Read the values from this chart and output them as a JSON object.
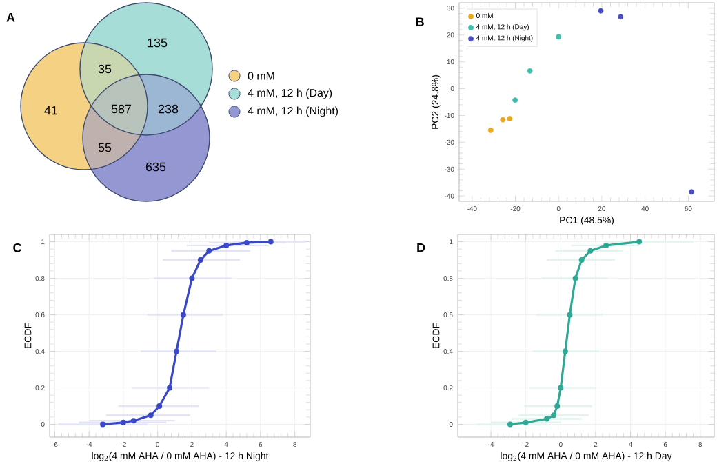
{
  "chart_data": [
    {
      "type": "other",
      "title": "A",
      "legend": "right",
      "annotations": [
        "41",
        "35",
        "135",
        "587",
        "238",
        "55",
        "635"
      ],
      "series": [
        {
          "name": "0 mM",
          "color": "#f4d183"
        },
        {
          "name": "4 mM, 12 h (Day)",
          "color": "#a6ddd6"
        },
        {
          "name": "4 mM, 12 h (Night)",
          "color": "#9497d2"
        }
      ]
    },
    {
      "type": "scatter",
      "title": "B",
      "xlabel": "PC1 (48.5%)",
      "ylabel": "PC2 (24.8%)",
      "xlim": [
        -46,
        72
      ],
      "ylim": [
        -42,
        32
      ],
      "xticks": [
        -40,
        -20,
        0,
        20,
        40,
        60
      ],
      "yticks": [
        -40,
        -30,
        -20,
        -10,
        0,
        10,
        20,
        30
      ],
      "legend": "top left",
      "marker": "circle",
      "series": [
        {
          "name": "0 mM",
          "color": "#e8a820",
          "x": [
            -31.4,
            -25.8,
            -22.6
          ],
          "values": [
            -15.5,
            -11.6,
            -11.2
          ]
        },
        {
          "name": "4 mM, 12 h (Day)",
          "color": "#3fbfad",
          "x": [
            -20.1,
            -13.3,
            0
          ],
          "values": [
            -4.3,
            6.6,
            19.3
          ]
        },
        {
          "name": "4 mM, 12 h (Night)",
          "color": "#4a4fc4",
          "x": [
            19.5,
            28.7,
            61.5
          ],
          "values": [
            29,
            26.8,
            -38.5
          ]
        }
      ]
    },
    {
      "type": "line",
      "title": "C",
      "xlabel": "log$_{2}$(4 mM AHA / 0 mM AHA) - 12 h Night",
      "ylabel": "ECDF",
      "xlim": [
        -6.3,
        8.9
      ],
      "ylim": [
        -0.07,
        1.04
      ],
      "xticks": [
        -6,
        -4,
        -2,
        0,
        2,
        4,
        6,
        8
      ],
      "yticks": [
        0,
        0.2,
        0.4,
        0.6,
        0.8,
        1
      ],
      "grid": true,
      "marker": "circle",
      "series": [
        {
          "color": "#3a48c8",
          "x": [
            -3.2,
            -2.0,
            -1.4,
            -0.4,
            0.1,
            0.7,
            1.1,
            1.5,
            2.0,
            2.5,
            3.0,
            4.0,
            5.2,
            6.6
          ],
          "values": [
            0,
            0.01,
            0.02,
            0.05,
            0.1,
            0.2,
            0.4,
            0.6,
            0.8,
            0.9,
            0.95,
            0.98,
            0.995,
            1
          ],
          "xerrors": [
            [
              -5.8,
              -0.6
            ],
            [
              -4.6,
              0.5
            ],
            [
              -4.0,
              1.0
            ],
            [
              -3.0,
              1.9
            ],
            [
              -2.3,
              2.4
            ],
            [
              -1.5,
              3.0
            ],
            [
              -1.0,
              3.4
            ],
            [
              -0.6,
              3.8
            ],
            [
              -0.2,
              4.3
            ],
            [
              0.3,
              4.8
            ],
            [
              0.8,
              5.4
            ],
            [
              1.7,
              6.5
            ],
            [
              3.0,
              7.5
            ],
            [
              4.4,
              8.6
            ]
          ]
        }
      ]
    },
    {
      "type": "line",
      "title": "D",
      "xlabel": "log$_{2}$(4 mM AHA / 0 mM AHA) - 12 h Day",
      "ylabel": "ECDF",
      "xlim": [
        -5.9,
        8.8
      ],
      "ylim": [
        -0.07,
        1.04
      ],
      "xticks": [
        -4,
        -2,
        0,
        2,
        4,
        6,
        8
      ],
      "yticks": [
        0,
        0.2,
        0.4,
        0.6,
        0.8,
        1
      ],
      "grid": true,
      "marker": "circle",
      "series": [
        {
          "color": "#2fa896",
          "x": [
            -2.9,
            -2.0,
            -0.8,
            -0.4,
            -0.2,
            0.0,
            0.26,
            0.52,
            0.84,
            1.2,
            1.7,
            2.6,
            4.5
          ],
          "values": [
            0,
            0.01,
            0.03,
            0.05,
            0.1,
            0.2,
            0.4,
            0.6,
            0.8,
            0.9,
            0.95,
            0.98,
            1
          ],
          "xerrors": [
            [
              -4.8,
              -0.8
            ],
            [
              -4.0,
              0.0
            ],
            [
              -2.8,
              1.2
            ],
            [
              -2.4,
              1.6
            ],
            [
              -2.1,
              1.8
            ],
            [
              -1.8,
              2.0
            ],
            [
              -1.6,
              2.2
            ],
            [
              -1.4,
              2.4
            ],
            [
              -1.1,
              2.7
            ],
            [
              -0.8,
              3.1
            ],
            [
              -0.3,
              3.6
            ],
            [
              0.6,
              4.5
            ],
            [
              2.5,
              7.6
            ]
          ]
        }
      ]
    }
  ]
}
